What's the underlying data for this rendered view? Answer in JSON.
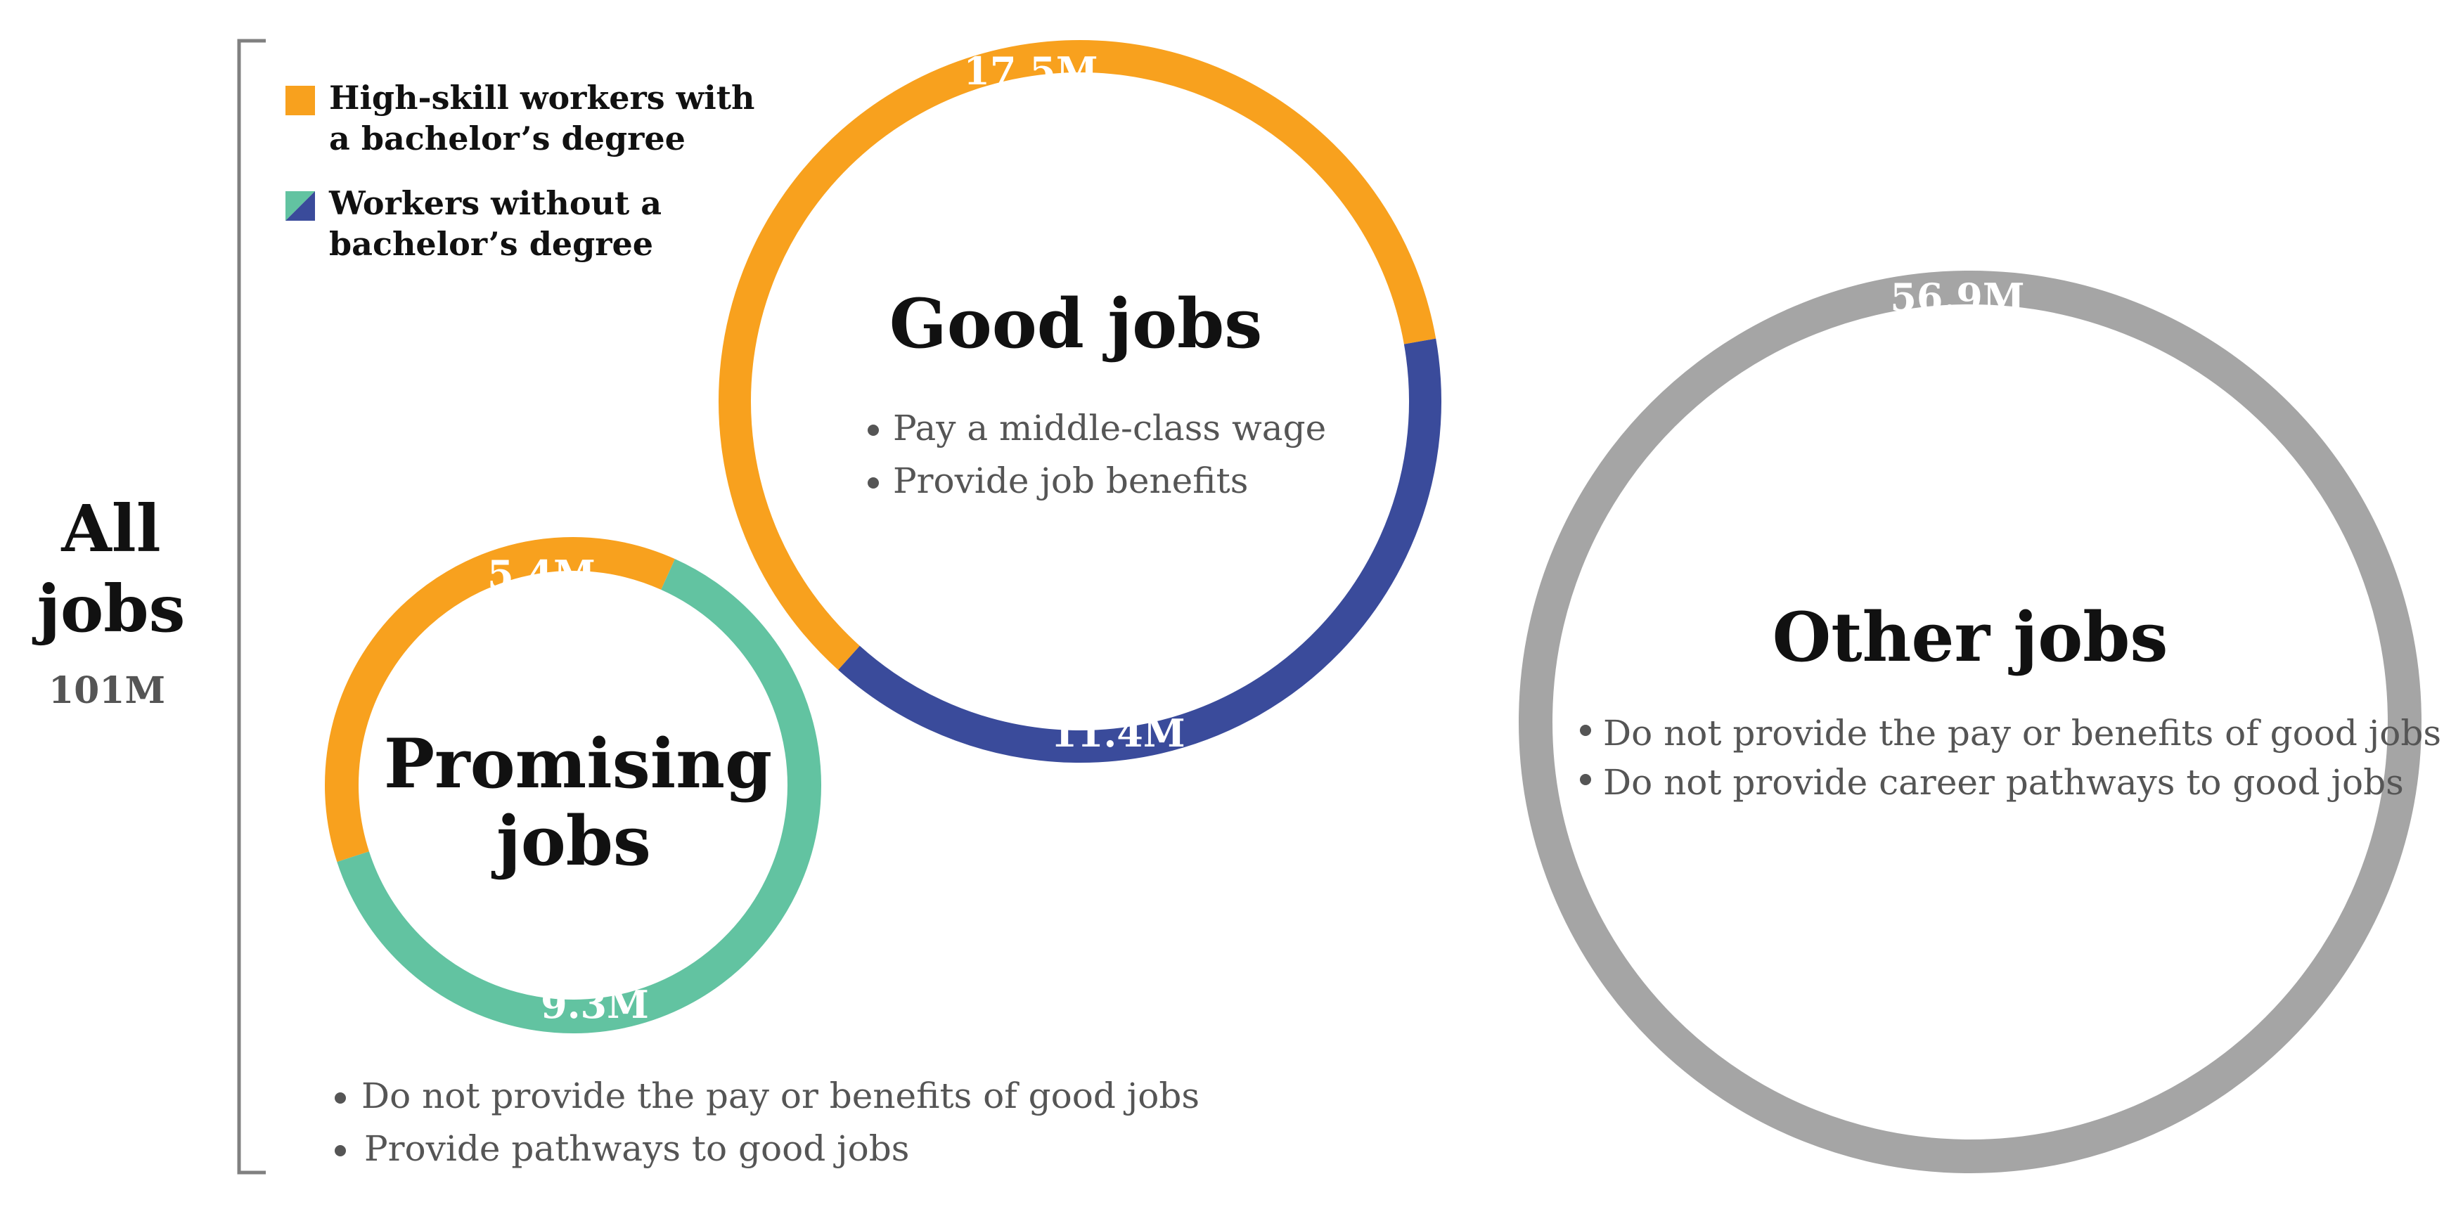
{
  "colors": {
    "high_skill": "#F8A11E",
    "without_degree_promising": "#62C3A1",
    "without_degree_good": "#3A4B9B",
    "other": "#A5A5A5",
    "text_dark": "#111111",
    "text_gray": "#555555",
    "bracket": "#808080"
  },
  "all_jobs": {
    "line1": "All",
    "line2": "jobs",
    "total": "101M"
  },
  "legend": [
    {
      "line1": "High-skill workers with",
      "line2": "a bachelor’s degree",
      "swatch": "high_skill"
    },
    {
      "line1": "Workers without a",
      "line2": "bachelor’s degree",
      "swatch": "without_degree"
    }
  ],
  "chart_data": {
    "type": "donut-bubble",
    "total_label": "101M",
    "groups": [
      {
        "name": "Good jobs",
        "title_lines": [
          "Good jobs"
        ],
        "bullets": [
          "Pay a middle-class wage",
          "Provide job benefits"
        ],
        "segments": [
          {
            "series": "High-skill workers with a bachelor’s degree",
            "value": 17.5,
            "label": "17.5M",
            "color": "#F8A11E"
          },
          {
            "series": "Workers without a bachelor’s degree",
            "value": 11.4,
            "label": "11.4M",
            "color": "#3A4B9B"
          }
        ]
      },
      {
        "name": "Promising jobs",
        "title_lines": [
          "Promising",
          "jobs"
        ],
        "bullets": [
          "Do not provide the pay or benefits of good jobs",
          "Provide pathways to good jobs"
        ],
        "segments": [
          {
            "series": "High-skill workers with a bachelor’s degree",
            "value": 5.4,
            "label": "5.4M",
            "color": "#F8A11E"
          },
          {
            "series": "Workers without a bachelor’s degree",
            "value": 9.3,
            "label": "9.3M",
            "color": "#62C3A1"
          }
        ]
      },
      {
        "name": "Other jobs",
        "title_lines": [
          "Other jobs"
        ],
        "bullets": [
          "Do not provide the pay or benefits of good jobs",
          "Do not provide career pathways to good jobs"
        ],
        "segments": [
          {
            "series": "",
            "value": 56.9,
            "label": "56.9M",
            "color": "#A5A5A5"
          }
        ]
      }
    ]
  }
}
